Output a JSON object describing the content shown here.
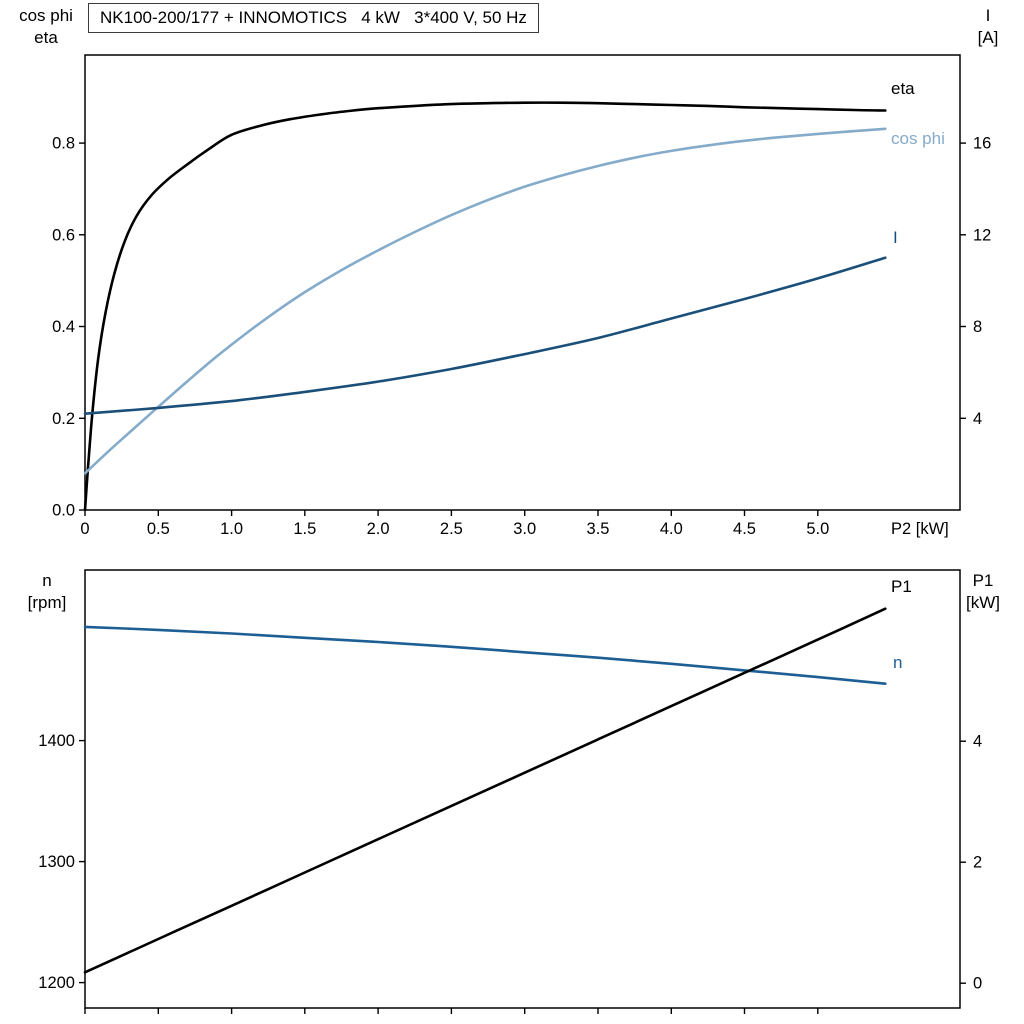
{
  "axis_headers": {
    "top_left": [
      "cos phi",
      "eta"
    ],
    "top_right": [
      "I",
      "[A]"
    ],
    "bottom_left": [
      "n",
      "[rpm]"
    ],
    "bottom_right": [
      "P1",
      "[kW]"
    ]
  },
  "colors": {
    "eta": "#000000",
    "cos_phi": "#85abcb",
    "current": "#1a4f7a",
    "speed": "#1d5f94",
    "p1": "#000000",
    "axis": "#000000",
    "text": "#000000"
  },
  "chart_data": [
    {
      "type": "line",
      "name": "motor-performance-top",
      "title": "NK100-200/177 + INNOMOTICS   4 kW   3*400 V, 50 Hz",
      "xlabel": "P2 [kW]",
      "left_axis_label": "cos phi / eta",
      "right_axis_label": "I [A]",
      "grid": false,
      "legend": "inline-right-labels",
      "xlim": [
        0,
        5.97
      ],
      "left_ylim": [
        0,
        0.992
      ],
      "right_ylim": [
        0,
        19.84
      ],
      "xticks": [
        0,
        0.5,
        1,
        1.5,
        2,
        2.5,
        3,
        3.5,
        4,
        4.5,
        5
      ],
      "xtick_labels": [
        "0",
        "0.5",
        "1.0",
        "1.5",
        "2.0",
        "2.5",
        "3.0",
        "3.5",
        "4.0",
        "4.5",
        "5.0"
      ],
      "left_yticks": [
        0,
        0.2,
        0.4,
        0.6,
        0.8
      ],
      "left_ytick_labels": [
        "0.0",
        "0.2",
        "0.4",
        "0.6",
        "0.8"
      ],
      "right_yticks": [
        4,
        8,
        12,
        16
      ],
      "right_ytick_labels": [
        "4",
        "8",
        "12",
        "16"
      ],
      "series": [
        {
          "name": "eta",
          "axis": "left",
          "color_key": "eta",
          "x": [
            0,
            0.02,
            0.05,
            0.09,
            0.14,
            0.2,
            0.27,
            0.35,
            0.45,
            0.57,
            0.7,
            0.85,
            1.0,
            1.2,
            1.4,
            1.6,
            1.8,
            2.0,
            2.25,
            2.5,
            2.75,
            3.0,
            3.25,
            3.5,
            3.75,
            4.0,
            4.25,
            4.5,
            4.75,
            5.0,
            5.25,
            5.46
          ],
          "y": [
            0,
            0.09,
            0.21,
            0.33,
            0.43,
            0.515,
            0.585,
            0.64,
            0.685,
            0.722,
            0.754,
            0.788,
            0.818,
            0.838,
            0.852,
            0.862,
            0.87,
            0.876,
            0.881,
            0.885,
            0.887,
            0.888,
            0.888,
            0.887,
            0.885,
            0.883,
            0.881,
            0.878,
            0.876,
            0.874,
            0.872,
            0.871
          ]
        },
        {
          "name": "cos phi",
          "axis": "left",
          "color_key": "cos_phi",
          "x": [
            0,
            0.15,
            0.3,
            0.5,
            0.7,
            0.9,
            1.1,
            1.3,
            1.5,
            1.75,
            2.0,
            2.25,
            2.5,
            2.75,
            3.0,
            3.25,
            3.5,
            3.75,
            4.0,
            4.25,
            4.5,
            4.75,
            5.0,
            5.25,
            5.46
          ],
          "y": [
            0.08,
            0.125,
            0.168,
            0.225,
            0.281,
            0.335,
            0.385,
            0.432,
            0.475,
            0.523,
            0.566,
            0.606,
            0.643,
            0.676,
            0.705,
            0.729,
            0.75,
            0.768,
            0.783,
            0.795,
            0.805,
            0.813,
            0.82,
            0.826,
            0.831
          ]
        },
        {
          "name": "I",
          "axis": "right",
          "color_key": "current",
          "x": [
            0,
            0.5,
            1.0,
            1.5,
            2.0,
            2.5,
            3.0,
            3.5,
            4.0,
            4.5,
            5.0,
            5.46
          ],
          "y": [
            4.2,
            4.45,
            4.75,
            5.15,
            5.6,
            6.15,
            6.8,
            7.5,
            8.35,
            9.2,
            10.1,
            11.0
          ]
        }
      ]
    },
    {
      "type": "line",
      "name": "motor-performance-bottom",
      "title": "",
      "xlabel": "",
      "left_axis_label": "n [rpm]",
      "right_axis_label": "P1 [kW]",
      "grid": false,
      "legend": "inline-right-labels",
      "xlim": [
        0,
        5.97
      ],
      "left_ylim": [
        1179,
        1541
      ],
      "right_ylim": [
        -0.41,
        6.83
      ],
      "xticks": [
        0,
        0.5,
        1,
        1.5,
        2,
        2.5,
        3,
        3.5,
        4,
        4.5,
        5
      ],
      "xtick_labels": [
        "",
        "",
        "",
        "",
        "",
        "",
        "",
        "",
        "",
        "",
        ""
      ],
      "left_yticks": [
        1200,
        1300,
        1400
      ],
      "left_ytick_labels": [
        "1200",
        "1300",
        "1400"
      ],
      "right_yticks": [
        0,
        2,
        4
      ],
      "right_ytick_labels": [
        "0",
        "2",
        "4"
      ],
      "series": [
        {
          "name": "n",
          "axis": "left",
          "color_key": "speed",
          "x": [
            0,
            0.5,
            1.0,
            1.5,
            2.0,
            2.5,
            3.0,
            3.5,
            4.0,
            4.5,
            5.0,
            5.46
          ],
          "y": [
            1494,
            1491.5,
            1488.5,
            1485,
            1481.5,
            1477.5,
            1473,
            1468.5,
            1463.5,
            1458,
            1452.5,
            1447
          ]
        },
        {
          "name": "P1",
          "axis": "right",
          "color_key": "p1",
          "x": [
            0,
            0.5,
            1.0,
            1.5,
            2.0,
            2.5,
            3.0,
            3.5,
            4.0,
            4.5,
            5.0,
            5.46
          ],
          "y": [
            0.18,
            0.73,
            1.28,
            1.83,
            2.38,
            2.93,
            3.48,
            4.03,
            4.58,
            5.13,
            5.68,
            6.19
          ]
        }
      ]
    }
  ]
}
